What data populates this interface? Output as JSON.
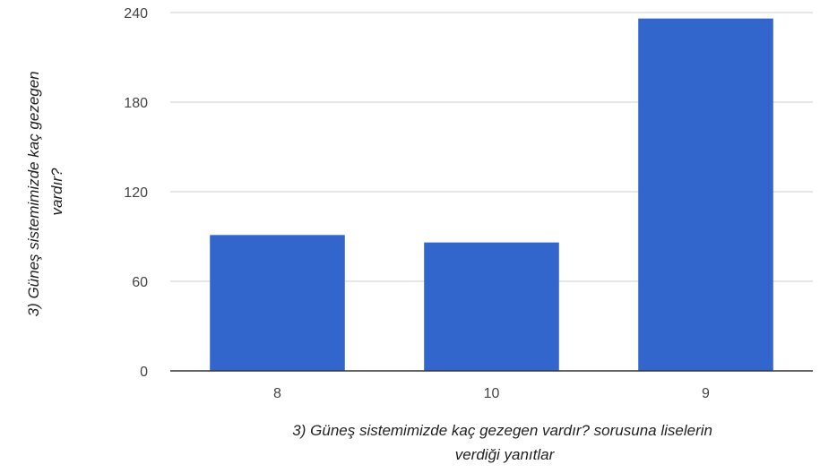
{
  "chart_data": {
    "type": "bar",
    "categories": [
      "8",
      "10",
      "9"
    ],
    "values": [
      91,
      86,
      236
    ],
    "title": "",
    "xlabel": "3) Güneş sistemimizde kaç gezegen vardır? sorusuna liselerin verdiği yanıtlar",
    "xlabel_lines": [
      "3) Güneş sistemimizde kaç gezegen vardır? sorusuna liselerin",
      "verdiği yanıtlar"
    ],
    "ylabel": "3) Güneş sistemimizde kaç gezegen vardır?",
    "ylabel_lines": [
      "3) Güneş sistemimizde kaç gezegen",
      "vardır?"
    ],
    "ylim": [
      0,
      240
    ],
    "yticks": [
      0,
      60,
      120,
      180,
      240
    ],
    "ytick_labels": [
      "0",
      "60",
      "120",
      "180",
      "240"
    ],
    "grid": true,
    "legend": "none",
    "colors": {
      "bar": "#3366cc",
      "grid": "#cccccc",
      "axis": "#333333"
    }
  }
}
